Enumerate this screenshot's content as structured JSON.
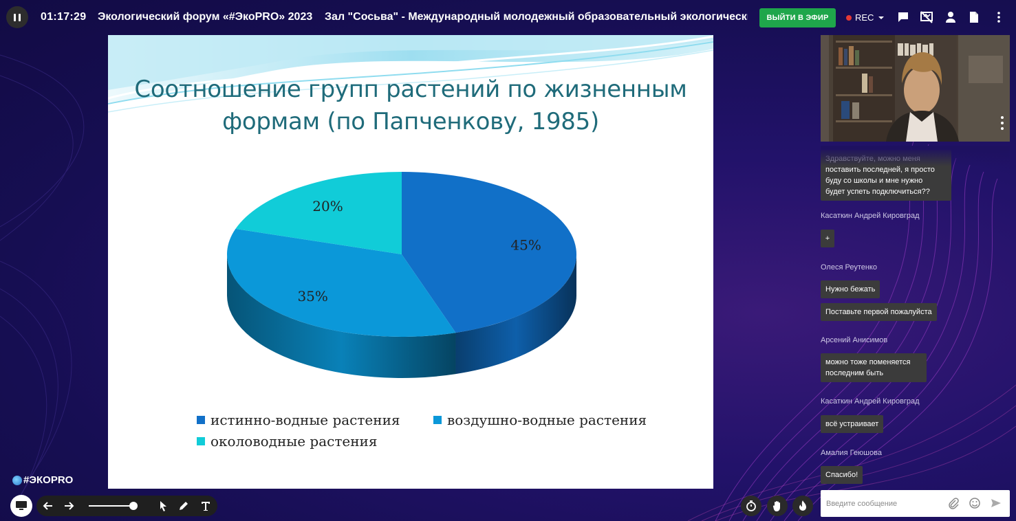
{
  "topbar": {
    "timer": "01:17:29",
    "title": "Экологический форум «#ЭкоPRO» 2023    Зал \"Сосьва\" - Международный молодежный образовательный экологический ф",
    "live_button": "ВЫЙТИ В ЭФИР",
    "rec_label": "REC",
    "icons": [
      "pause-icon",
      "chat-icon",
      "screen-share-off-icon",
      "user-icon",
      "document-icon",
      "more-vertical-icon"
    ]
  },
  "slide": {
    "title": "Соотношение групп растений по жизненным формам (по Папченкову, 1985)",
    "colors": {
      "deep": "#1170c8",
      "sky": "#0b98d9",
      "cyan": "#11ccd8"
    }
  },
  "chart_data": {
    "type": "pie",
    "title": "Соотношение групп растений по жизненным формам (по Папченкову, 1985)",
    "style": "3d",
    "slices": [
      {
        "label": "истинно-водные растения",
        "value": 45,
        "data_label": "45%",
        "color": "#1170c8"
      },
      {
        "label": "воздушно-водные растения",
        "value": 35,
        "data_label": "35%",
        "color": "#0b98d9"
      },
      {
        "label": "околоводные растения",
        "value": 20,
        "data_label": "20%",
        "color": "#11ccd8"
      }
    ],
    "legend": "bottom"
  },
  "toolbar": {
    "logo_text": "#ЭКОPRO",
    "tools": [
      "screen-icon",
      "arrow-left-icon",
      "arrow-right-icon",
      "pointer-icon",
      "pencil-icon",
      "text-icon"
    ],
    "round_buttons": [
      "timer-icon",
      "raise-hand-icon",
      "fire-icon"
    ]
  },
  "chat": {
    "messages": [
      {
        "author": "",
        "lines": [
          "Здравствуйте, можно меня",
          "поставить последней, я просто",
          "буду со школы и мне нужно",
          "будет успеть подключиться??"
        ]
      },
      {
        "author": "Касаткин Андрей Кировград",
        "lines": [
          "+"
        ]
      },
      {
        "author": "Олеся Реутенко",
        "lines": [
          "Нужно бежать"
        ]
      },
      {
        "author": "",
        "lines": [
          "Поставьте первой пожалуйста"
        ]
      },
      {
        "author": "Арсений Анисимов",
        "lines": [
          "можно тоже поменяется",
          "последним быть"
        ]
      },
      {
        "author": "Касаткин Андрей Кировград",
        "lines": [
          "всё устраивает"
        ]
      },
      {
        "author": "Амалия Геюшова",
        "lines": [
          "Спасибо!"
        ]
      }
    ],
    "input_placeholder": "Введите сообщение",
    "input_icons": [
      "attach-icon",
      "emoji-icon",
      "send-icon"
    ]
  }
}
